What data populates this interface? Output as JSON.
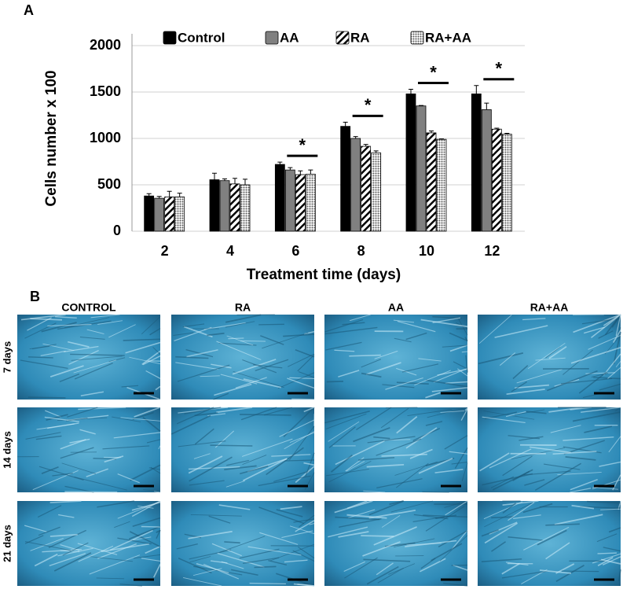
{
  "chart_data": {
    "type": "bar",
    "panel_label": "A",
    "x_label": "Treatment time (days)",
    "y_label": "Cells number x 100",
    "categories": [
      "2",
      "4",
      "6",
      "8",
      "10",
      "12"
    ],
    "ylim": [
      0,
      2000
    ],
    "yticks": [
      0,
      500,
      1000,
      1500,
      2000
    ],
    "grid": true,
    "legend": "top",
    "series": [
      {
        "name": "Control",
        "color": "#000000",
        "pattern": "solid",
        "values": [
          380,
          555,
          720,
          1130,
          1480,
          1480
        ],
        "errors": [
          25,
          70,
          25,
          45,
          50,
          90
        ]
      },
      {
        "name": "AA",
        "color": "#808080",
        "pattern": "solid",
        "values": [
          355,
          545,
          660,
          1000,
          1350,
          1310
        ],
        "errors": [
          20,
          20,
          25,
          20,
          5,
          70
        ]
      },
      {
        "name": "RA",
        "color": "#000000",
        "pattern": "hatch",
        "values": [
          370,
          510,
          610,
          915,
          1060,
          1100
        ],
        "errors": [
          60,
          60,
          40,
          20,
          20,
          10
        ]
      },
      {
        "name": "RA+AA",
        "color": "#555555",
        "pattern": "dots",
        "values": [
          370,
          500,
          615,
          845,
          990,
          1045
        ],
        "errors": [
          40,
          60,
          45,
          20,
          5,
          10
        ]
      }
    ],
    "annotations": [
      {
        "category": "6",
        "text": "*"
      },
      {
        "category": "8",
        "text": "*"
      },
      {
        "category": "10",
        "text": "*"
      },
      {
        "category": "12",
        "text": "*"
      }
    ]
  },
  "images": {
    "panel_label": "B",
    "columns": [
      "CONTROL",
      "RA",
      "AA",
      "RA+AA"
    ],
    "rows": [
      "7 days",
      "14 days",
      "21 days"
    ]
  }
}
